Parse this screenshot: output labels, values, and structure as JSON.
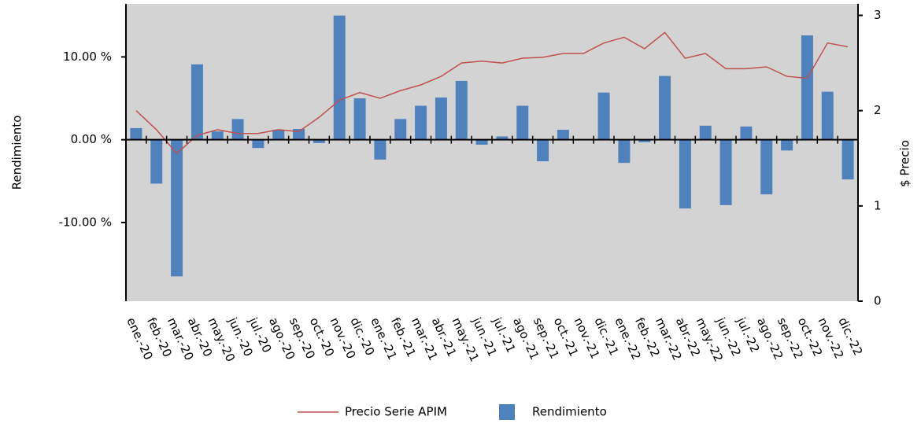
{
  "chart_data": {
    "type": "bar-line",
    "y_label": "Rendimiento",
    "y2_label": "$ Precio",
    "categories": [
      "ene.-20",
      "feb.-20",
      "mar.-20",
      "abr.-20",
      "may.-20",
      "jun.-20",
      "jul.-20",
      "ago.-20",
      "sep.-20",
      "oct.-20",
      "nov.-20",
      "dic.-20",
      "ene.-21",
      "feb.-21",
      "mar.-21",
      "abr.-21",
      "may.-21",
      "jun.-21",
      "jul.-21",
      "ago.-21",
      "sep.-21",
      "oct.-21",
      "nov.-21",
      "dic.-21",
      "ene.-22",
      "feb.-22",
      "mar.-22",
      "abr.-22",
      "may.-22",
      "jun.-22",
      "jul.-22",
      "ago.-22",
      "sep.-22",
      "oct.-22",
      "nov.-22",
      "dic.-22"
    ],
    "series": [
      {
        "name": "Precio Serie APIM",
        "color": "#c0504d",
        "type": "line",
        "axis": "y2",
        "values": [
          2.0,
          1.8,
          1.55,
          1.74,
          1.8,
          1.76,
          1.76,
          1.8,
          1.78,
          1.93,
          2.11,
          2.19,
          2.13,
          2.21,
          2.27,
          2.36,
          2.5,
          2.52,
          2.5,
          2.55,
          2.56,
          2.6,
          2.6,
          2.71,
          2.77,
          2.65,
          2.82,
          2.55,
          2.6,
          2.44,
          2.44,
          2.46,
          2.36,
          2.34,
          2.71,
          2.67
        ]
      },
      {
        "name": "Rendimiento",
        "color": "#4f81bd",
        "type": "bar",
        "values": [
          1.4,
          -5.3,
          -16.5,
          9.1,
          1.0,
          2.5,
          -1.0,
          1.2,
          1.3,
          -0.4,
          15.0,
          5.0,
          -2.4,
          2.5,
          4.1,
          5.1,
          7.1,
          -0.6,
          0.4,
          4.1,
          -2.6,
          1.2,
          0,
          5.7,
          -2.8,
          -0.3,
          7.7,
          -8.3,
          1.7,
          -7.9,
          1.6,
          -6.6,
          -1.3,
          12.6,
          5.8,
          -4.8
        ]
      }
    ],
    "ylim": [
      -19.5,
      16.4
    ],
    "yticks": [
      {
        "value": -10,
        "label": "-10.00 %"
      },
      {
        "value": 0,
        "label": "0.00 %"
      },
      {
        "value": 10,
        "label": "10.00 %"
      }
    ],
    "y2lim": [
      0,
      3.12
    ],
    "y2ticks": [
      0,
      1,
      2,
      3
    ],
    "grid": false
  }
}
